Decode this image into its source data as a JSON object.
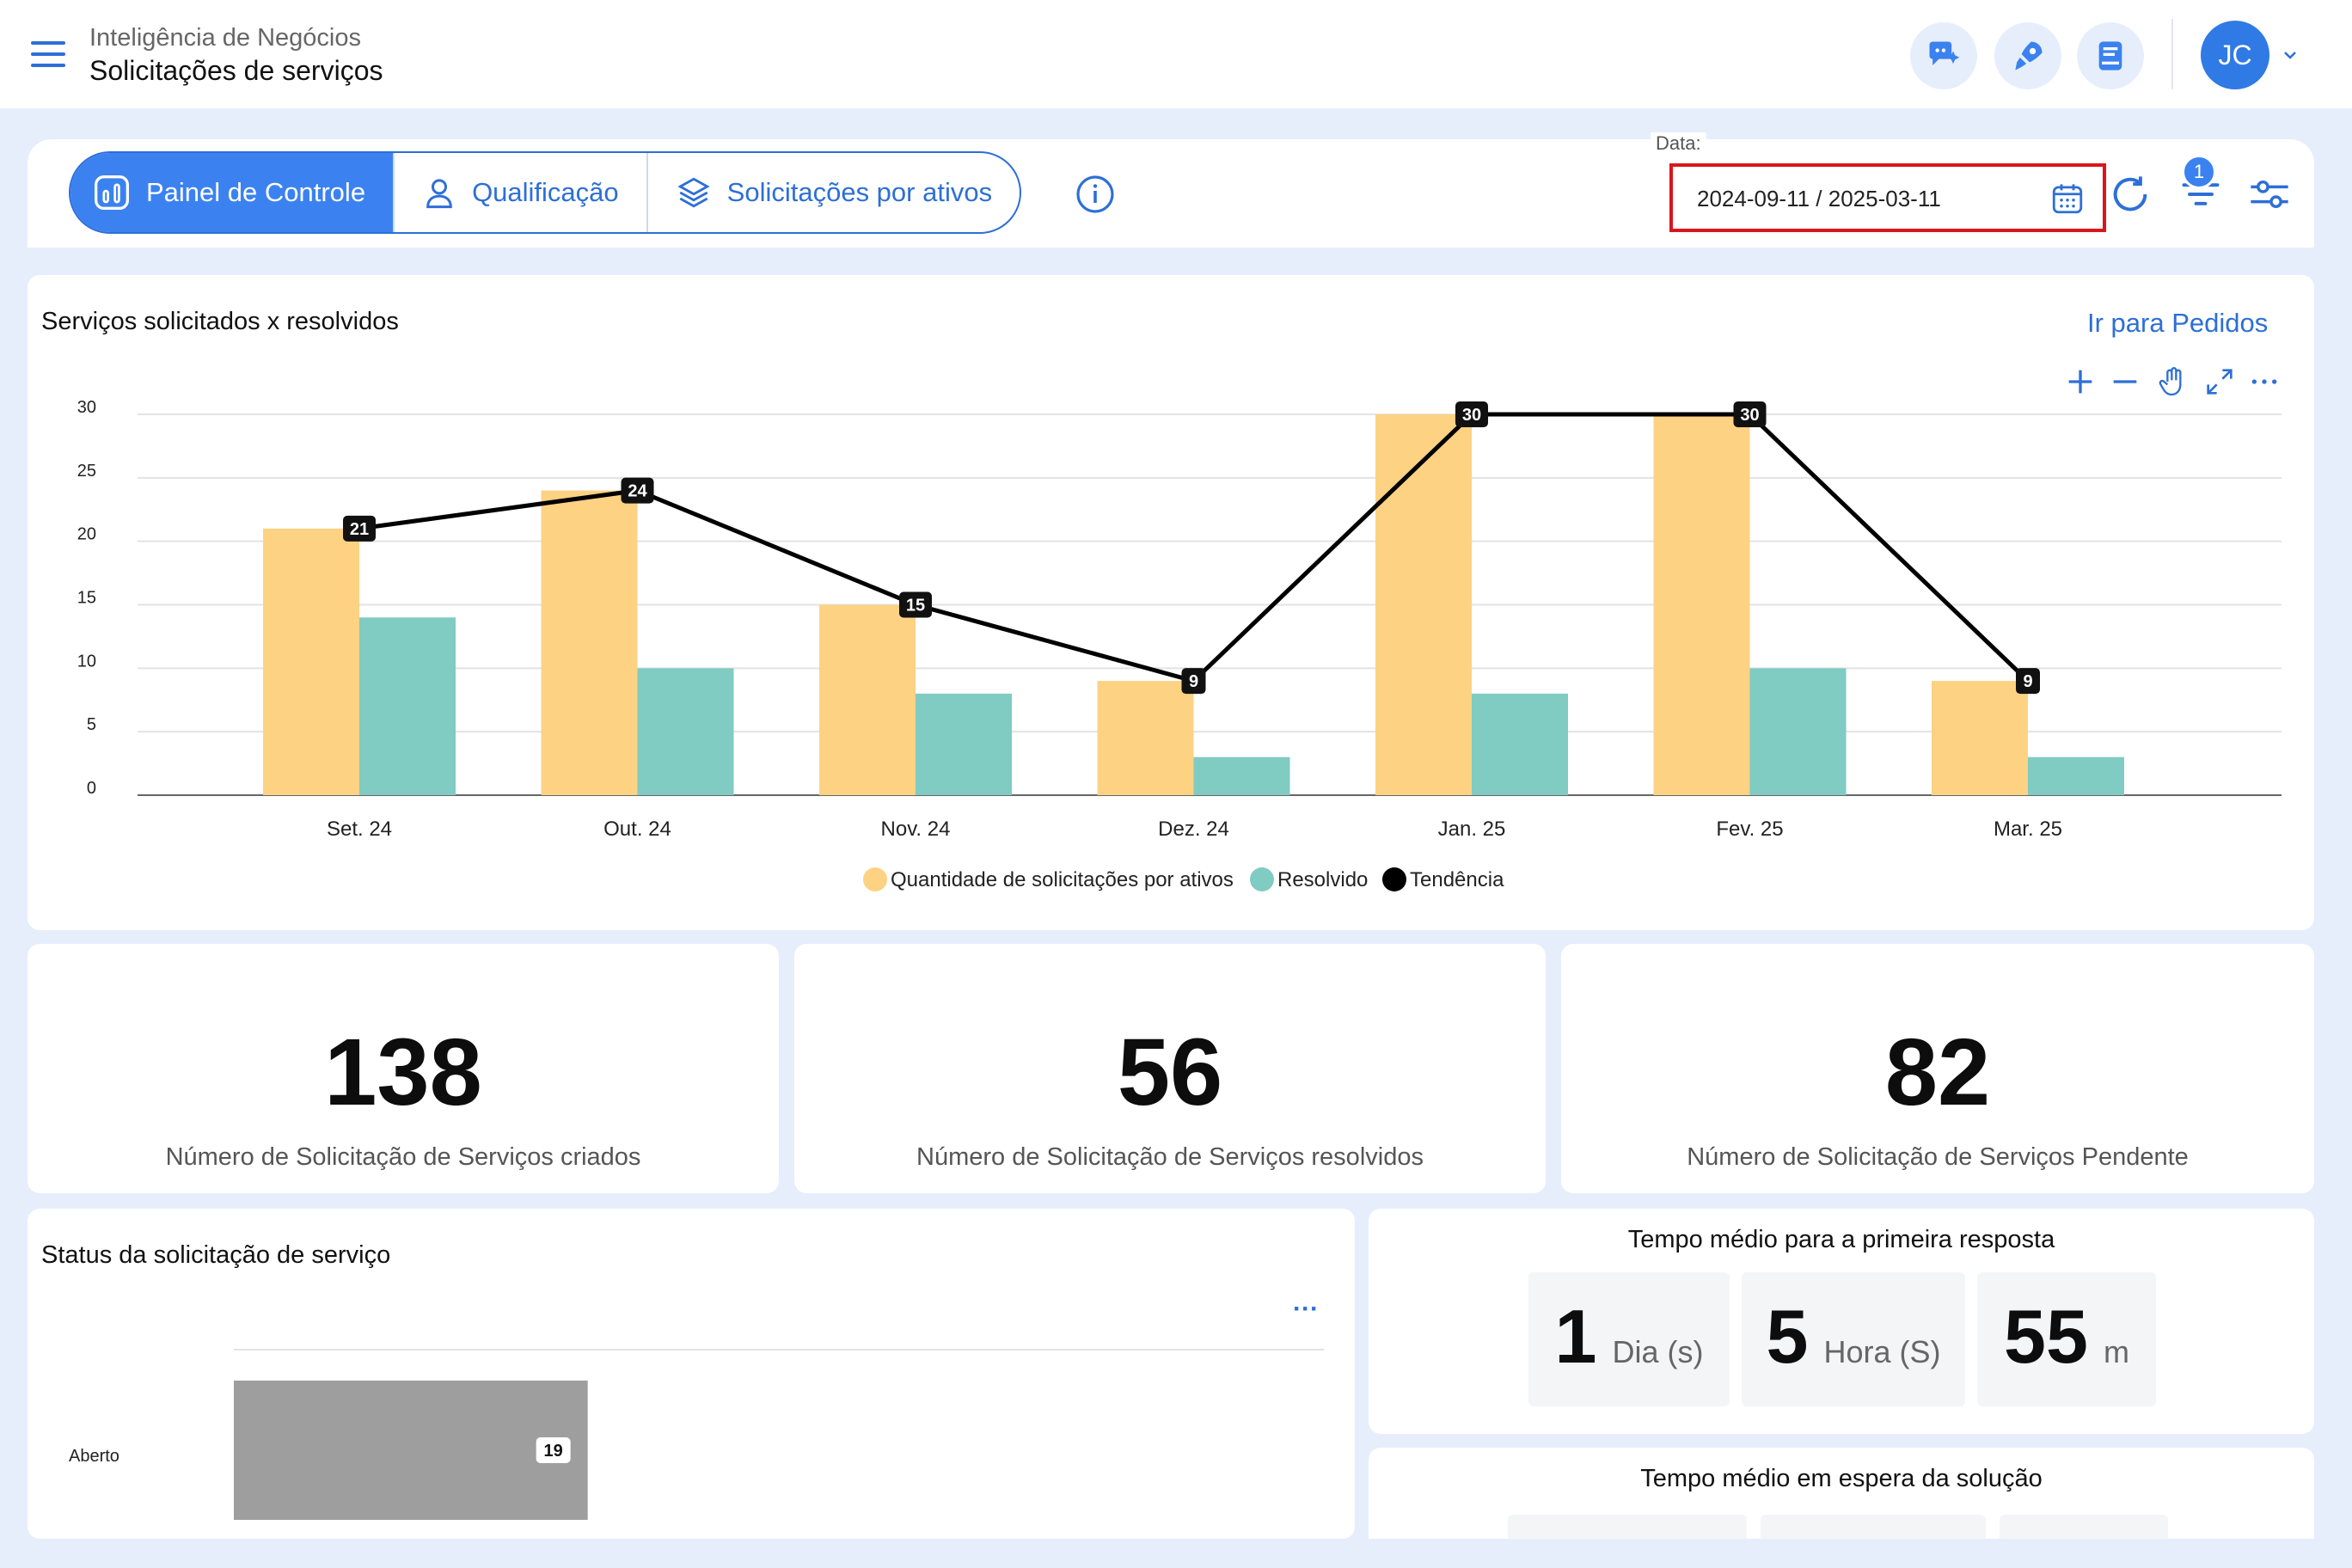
{
  "header": {
    "subtitle": "Inteligência de Negócios",
    "title": "Solicitações de serviços",
    "avatar_initials": "JC"
  },
  "tabs": [
    {
      "label": "Painel de Controle",
      "active": true,
      "icon": "bar-chart-icon"
    },
    {
      "label": "Qualificação",
      "active": false,
      "icon": "user-icon"
    },
    {
      "label": "Solicitações por ativos",
      "active": false,
      "icon": "layers-icon"
    }
  ],
  "date_filter": {
    "label": "Data:",
    "value": "2024-09-11 / 2025-03-11"
  },
  "filter_badge": "1",
  "chart_card": {
    "title": "Serviços solicitados x resolvidos",
    "link": "Ir para Pedidos"
  },
  "chart_data": {
    "type": "bar",
    "categories": [
      "Set. 24",
      "Out. 24",
      "Nov. 24",
      "Dez. 24",
      "Jan. 25",
      "Fev. 25",
      "Mar. 25"
    ],
    "series": [
      {
        "name": "Quantidade de solicitações por ativos",
        "type": "bar",
        "color": "#fdd283",
        "values": [
          21,
          24,
          15,
          9,
          30,
          30,
          9
        ]
      },
      {
        "name": "Resolvido",
        "type": "bar",
        "color": "#80cbc2",
        "values": [
          14,
          10,
          8,
          3,
          8,
          10,
          3
        ]
      },
      {
        "name": "Tendência",
        "type": "line",
        "color": "#000000",
        "values": [
          21,
          24,
          15,
          9,
          30,
          30,
          9
        ]
      }
    ],
    "y_ticks": [
      0,
      5,
      10,
      15,
      20,
      25,
      30
    ],
    "ylim": [
      0,
      30
    ],
    "grid": true,
    "legend_position": "bottom-center"
  },
  "kpis": [
    {
      "value": "138",
      "label": "Número de Solicitação de Serviços criados"
    },
    {
      "value": "56",
      "label": "Número de Solicitação de Serviços resolvidos"
    },
    {
      "value": "82",
      "label": "Número de Solicitação de Serviços Pendente"
    }
  ],
  "status_card": {
    "title": "Status da solicitação de serviço",
    "more": "···",
    "chart_data": {
      "type": "bar",
      "orientation": "horizontal",
      "categories": [
        "Aberto"
      ],
      "values": [
        19
      ],
      "color": "#9e9e9e"
    }
  },
  "first_response": {
    "title": "Tempo médio para a primeira resposta",
    "days": "1",
    "days_unit": "Dia (s)",
    "hours": "5",
    "hours_unit": "Hora (S)",
    "minutes": "55",
    "minutes_unit": "m"
  },
  "wait_solution": {
    "title": "Tempo médio em espera da solução"
  }
}
